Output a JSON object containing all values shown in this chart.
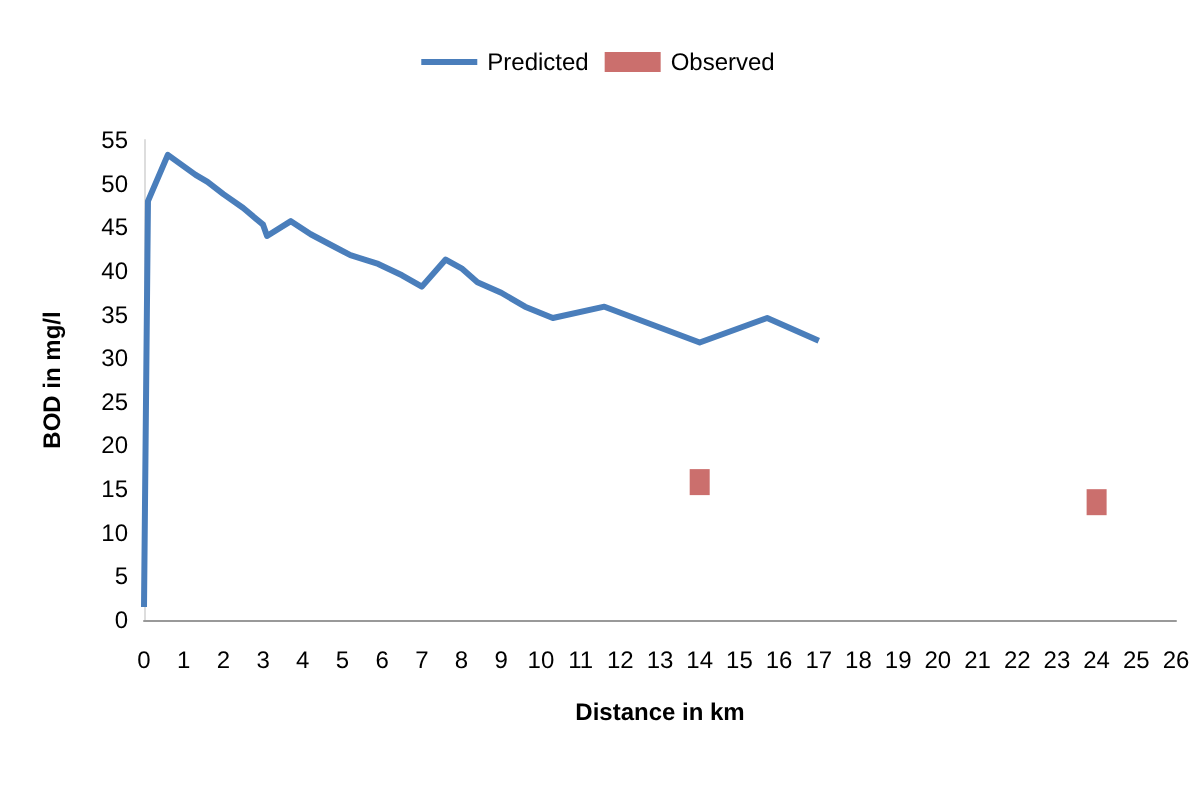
{
  "chart_data": {
    "type": "line",
    "xlabel": "Distance in km",
    "ylabel": "BOD in mg/l",
    "xlim": [
      0,
      26
    ],
    "xticks": [
      0,
      1,
      2,
      3,
      4,
      5,
      6,
      7,
      8,
      9,
      10,
      11,
      12,
      13,
      14,
      15,
      16,
      17,
      18,
      19,
      20,
      21,
      22,
      23,
      24,
      25,
      26
    ],
    "ylim": [
      0,
      55
    ],
    "yticks": [
      0,
      5,
      10,
      15,
      20,
      25,
      30,
      35,
      40,
      45,
      50,
      55
    ],
    "grid": false,
    "legend": "top",
    "series": [
      {
        "name": "Predicted",
        "color": "#4a7ebb",
        "marker": "none",
        "x": [
          0,
          0.1,
          0.6,
          1.3,
          1.6,
          2,
          2.5,
          3,
          3.1,
          3.7,
          4.2,
          4.7,
          5.2,
          5.9,
          6.5,
          7,
          7.6,
          8,
          8.4,
          9,
          9.6,
          10.3,
          11.6,
          14,
          15.7,
          17
        ],
        "values": [
          1.5,
          48,
          53.3,
          51,
          50.2,
          48.8,
          47.2,
          45.3,
          44,
          45.7,
          44.2,
          43,
          41.8,
          40.8,
          39.5,
          38.2,
          41.3,
          40.3,
          38.7,
          37.5,
          35.9,
          34.6,
          35.9,
          31.8,
          34.6,
          32
        ]
      },
      {
        "name": "Observed",
        "type": "scatter",
        "color": "#be4b48",
        "marker": "square",
        "x": [
          14,
          24
        ],
        "values": [
          15.8,
          13.5
        ]
      }
    ]
  }
}
